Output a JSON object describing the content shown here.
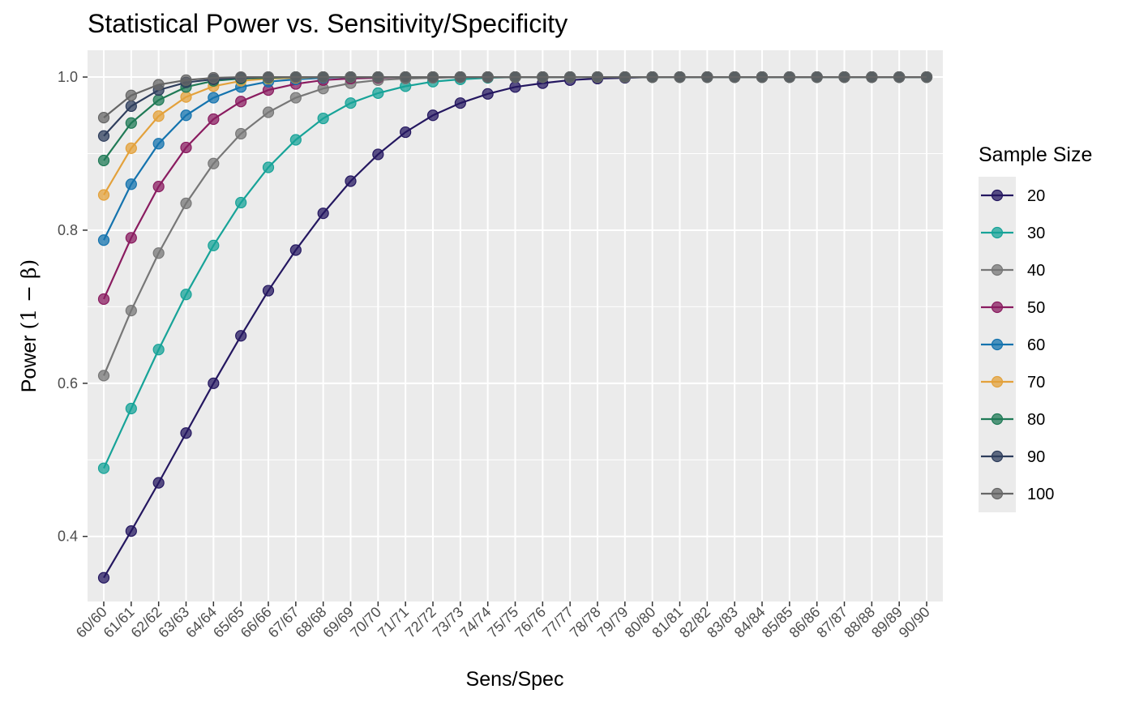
{
  "chart_data": {
    "type": "line",
    "title": "Statistical Power vs. Sensitivity/Specificity",
    "xlabel": "Sens/Spec",
    "ylabel_prefix": "Power",
    "ylabel_formula": "(1 − β)",
    "ylim": [
      0.315,
      1.035
    ],
    "yticks": [
      "0.4",
      "0.6",
      "0.8",
      "1.0"
    ],
    "ytick_values": [
      0.4,
      0.6,
      0.8,
      1.0
    ],
    "grid": true,
    "legend_title": "Sample Size",
    "legend_position": "right",
    "categories": [
      "60/60",
      "61/61",
      "62/62",
      "63/63",
      "64/64",
      "65/65",
      "66/66",
      "67/67",
      "68/68",
      "69/69",
      "70/70",
      "71/71",
      "72/72",
      "73/73",
      "74/74",
      "75/75",
      "76/76",
      "77/77",
      "78/78",
      "79/79",
      "80/80",
      "81/81",
      "82/82",
      "83/83",
      "84/84",
      "85/85",
      "86/86",
      "87/87",
      "88/88",
      "89/89",
      "90/90"
    ],
    "series": [
      {
        "name": "20",
        "color": "#241760",
        "values": [
          0.346,
          0.407,
          0.47,
          0.535,
          0.6,
          0.662,
          0.721,
          0.774,
          0.822,
          0.864,
          0.899,
          0.928,
          0.95,
          0.966,
          0.978,
          0.987,
          0.992,
          0.996,
          0.998,
          0.999,
          1.0,
          1.0,
          1.0,
          1.0,
          1.0,
          1.0,
          1.0,
          1.0,
          1.0,
          1.0,
          1.0
        ]
      },
      {
        "name": "30",
        "color": "#17A398",
        "values": [
          0.489,
          0.567,
          0.644,
          0.716,
          0.78,
          0.836,
          0.882,
          0.918,
          0.946,
          0.966,
          0.979,
          0.988,
          0.994,
          0.997,
          0.999,
          1.0,
          1.0,
          1.0,
          1.0,
          1.0,
          1.0,
          1.0,
          1.0,
          1.0,
          1.0,
          1.0,
          1.0,
          1.0,
          1.0,
          1.0,
          1.0
        ]
      },
      {
        "name": "40",
        "color": "#777777",
        "values": [
          0.61,
          0.695,
          0.77,
          0.835,
          0.887,
          0.926,
          0.954,
          0.973,
          0.985,
          0.992,
          0.996,
          0.998,
          0.999,
          1.0,
          1.0,
          1.0,
          1.0,
          1.0,
          1.0,
          1.0,
          1.0,
          1.0,
          1.0,
          1.0,
          1.0,
          1.0,
          1.0,
          1.0,
          1.0,
          1.0,
          1.0
        ]
      },
      {
        "name": "50",
        "color": "#8A1C60",
        "values": [
          0.71,
          0.79,
          0.857,
          0.908,
          0.945,
          0.968,
          0.983,
          0.991,
          0.996,
          0.998,
          0.999,
          1.0,
          1.0,
          1.0,
          1.0,
          1.0,
          1.0,
          1.0,
          1.0,
          1.0,
          1.0,
          1.0,
          1.0,
          1.0,
          1.0,
          1.0,
          1.0,
          1.0,
          1.0,
          1.0,
          1.0
        ]
      },
      {
        "name": "60",
        "color": "#1473AE",
        "values": [
          0.787,
          0.86,
          0.913,
          0.95,
          0.973,
          0.987,
          0.994,
          0.997,
          0.999,
          1.0,
          1.0,
          1.0,
          1.0,
          1.0,
          1.0,
          1.0,
          1.0,
          1.0,
          1.0,
          1.0,
          1.0,
          1.0,
          1.0,
          1.0,
          1.0,
          1.0,
          1.0,
          1.0,
          1.0,
          1.0,
          1.0
        ]
      },
      {
        "name": "70",
        "color": "#E3A13B",
        "values": [
          0.846,
          0.907,
          0.949,
          0.974,
          0.988,
          0.995,
          0.998,
          0.999,
          1.0,
          1.0,
          1.0,
          1.0,
          1.0,
          1.0,
          1.0,
          1.0,
          1.0,
          1.0,
          1.0,
          1.0,
          1.0,
          1.0,
          1.0,
          1.0,
          1.0,
          1.0,
          1.0,
          1.0,
          1.0,
          1.0,
          1.0
        ]
      },
      {
        "name": "80",
        "color": "#1F7A56",
        "values": [
          0.891,
          0.94,
          0.97,
          0.987,
          0.995,
          0.998,
          0.999,
          1.0,
          1.0,
          1.0,
          1.0,
          1.0,
          1.0,
          1.0,
          1.0,
          1.0,
          1.0,
          1.0,
          1.0,
          1.0,
          1.0,
          1.0,
          1.0,
          1.0,
          1.0,
          1.0,
          1.0,
          1.0,
          1.0,
          1.0,
          1.0
        ]
      },
      {
        "name": "90",
        "color": "#2E3D5C",
        "values": [
          0.923,
          0.962,
          0.983,
          0.993,
          0.997,
          0.999,
          1.0,
          1.0,
          1.0,
          1.0,
          1.0,
          1.0,
          1.0,
          1.0,
          1.0,
          1.0,
          1.0,
          1.0,
          1.0,
          1.0,
          1.0,
          1.0,
          1.0,
          1.0,
          1.0,
          1.0,
          1.0,
          1.0,
          1.0,
          1.0,
          1.0
        ]
      },
      {
        "name": "100",
        "color": "#666666",
        "values": [
          0.947,
          0.976,
          0.99,
          0.996,
          0.999,
          1.0,
          1.0,
          1.0,
          1.0,
          1.0,
          1.0,
          1.0,
          1.0,
          1.0,
          1.0,
          1.0,
          1.0,
          1.0,
          1.0,
          1.0,
          1.0,
          1.0,
          1.0,
          1.0,
          1.0,
          1.0,
          1.0,
          1.0,
          1.0,
          1.0,
          1.0
        ]
      }
    ]
  }
}
